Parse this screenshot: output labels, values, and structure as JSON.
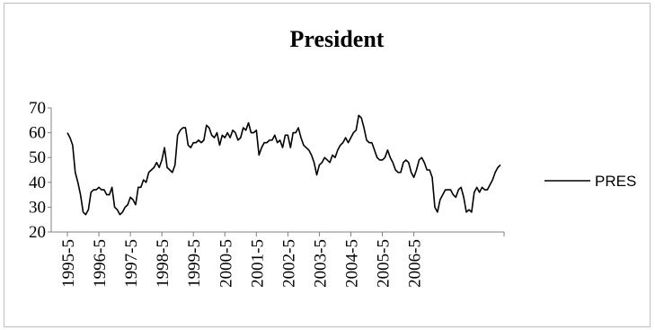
{
  "chart_data": {
    "type": "line",
    "title": "President",
    "xlabel": "",
    "ylabel": "",
    "ylim": [
      20,
      70
    ],
    "yticks": [
      "70",
      "60",
      "50",
      "40",
      "30",
      "20"
    ],
    "ytick_values": [
      70,
      60,
      50,
      40,
      30,
      20
    ],
    "xtick_labels": [
      "1995-5",
      "1996-5",
      "1997-5",
      "1998-5",
      "1999-5",
      "2000-5",
      "2001-5",
      "2002-5",
      "2003-5",
      "2004-5",
      "2005-5",
      "2006-5"
    ],
    "grid": false,
    "legend": "right",
    "line_color": "#000000",
    "series": [
      {
        "name": "PRES",
        "start": "1995-5",
        "frequency": "monthly",
        "values": [
          60,
          58,
          55,
          44,
          40,
          35,
          28,
          27,
          29,
          36,
          37,
          37,
          38,
          37,
          37,
          35,
          35,
          38,
          30,
          29,
          27,
          28,
          30,
          31,
          34,
          33,
          31,
          38,
          38,
          41,
          40,
          44,
          45,
          46,
          48,
          46,
          49,
          54,
          46,
          45,
          44,
          47,
          59,
          61,
          62,
          62,
          55,
          54,
          56,
          56,
          57,
          56,
          57,
          63,
          62,
          59,
          58,
          60,
          55,
          59,
          58,
          60,
          58,
          61,
          60,
          57,
          58,
          62,
          61,
          64,
          60,
          60,
          61,
          51,
          54,
          56,
          56,
          57,
          57,
          59,
          56,
          57,
          54,
          59,
          59,
          54,
          60,
          60,
          62,
          58,
          55,
          54,
          53,
          51,
          48,
          43,
          47,
          48,
          50,
          49,
          48,
          51,
          50,
          53,
          55,
          56,
          58,
          56,
          58,
          60,
          61,
          67,
          66,
          62,
          57,
          56,
          56,
          53,
          50,
          49,
          49,
          50,
          53,
          50,
          48,
          45,
          44,
          44,
          48,
          49,
          48,
          44,
          42,
          45,
          49,
          50,
          48,
          45,
          45,
          42,
          30,
          28,
          33,
          35,
          37,
          37,
          37,
          35,
          34,
          37,
          38,
          34,
          28,
          29,
          28,
          36,
          38,
          36,
          38,
          37,
          37,
          39,
          41,
          44,
          46,
          47
        ]
      }
    ]
  }
}
